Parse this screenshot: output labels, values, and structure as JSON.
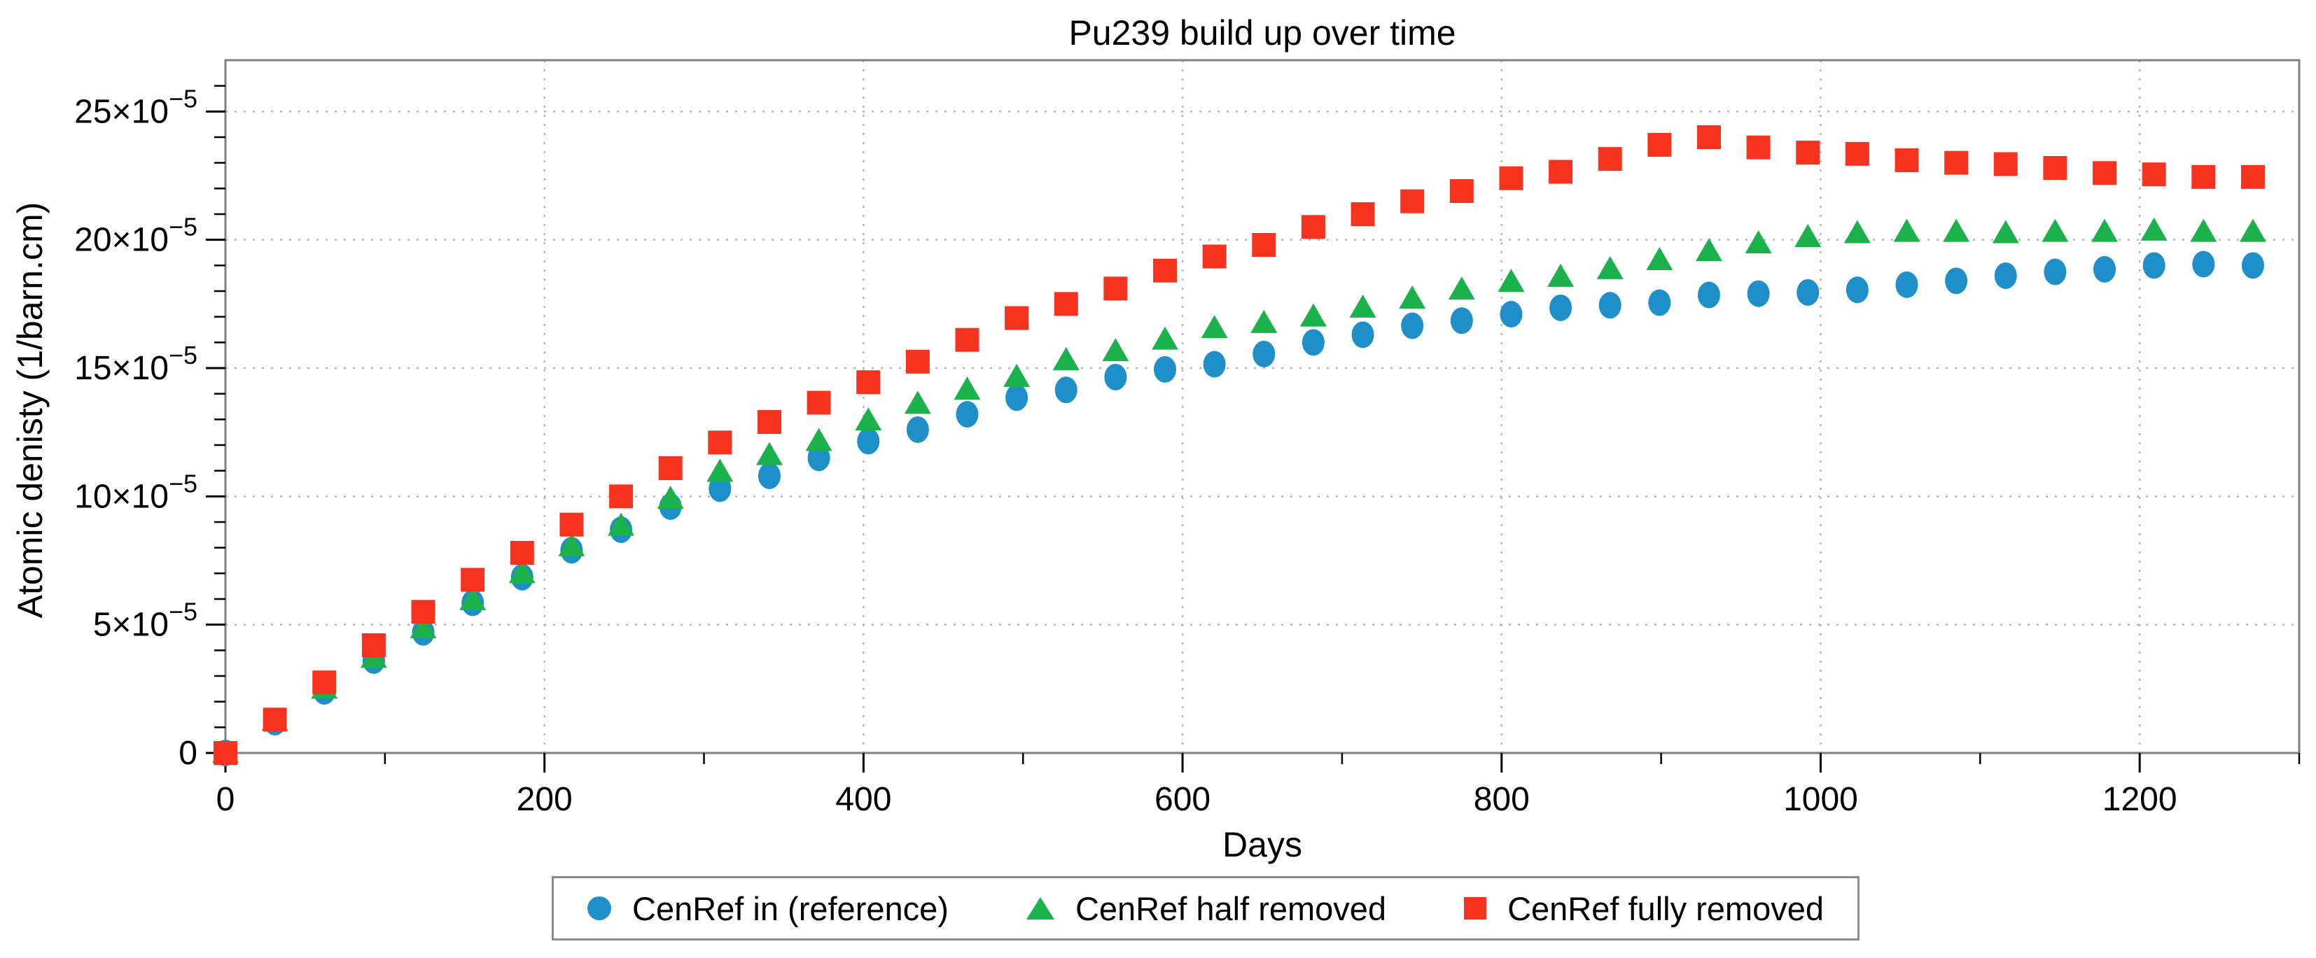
{
  "title": "Pu239 build up over time",
  "axes": {
    "x": {
      "label": "Days",
      "range": [
        0,
        1300
      ],
      "major_ticks": [
        0,
        200,
        400,
        600,
        800,
        1000,
        1200
      ],
      "major_tick_labels": [
        "0",
        "200",
        "400",
        "600",
        "800",
        "1000",
        "1200"
      ],
      "minor_ticks": [
        100,
        300,
        500,
        700,
        900,
        1100,
        1300
      ],
      "grid": "dotted at major ticks"
    },
    "y": {
      "label": "Atomic denisty (1/barn.cm)",
      "range_in_1e-5": [
        0,
        27
      ],
      "major_ticks_in_1e-5": [
        0,
        5,
        10,
        15,
        20,
        25
      ],
      "major_tick_labels": [
        "0",
        "5×10⁻⁵",
        "10×10⁻⁵",
        "15×10⁻⁵",
        "20×10⁻⁵",
        "25×10⁻⁵"
      ],
      "minor_ticks_in_1e-5": [
        1,
        2,
        3,
        4,
        6,
        7,
        8,
        9,
        11,
        12,
        13,
        14,
        16,
        17,
        18,
        19,
        21,
        22,
        23,
        24,
        26
      ],
      "grid": "dotted at major ticks"
    }
  },
  "colors": {
    "reference_blue": "#1e8fc8",
    "half_removed_green": "#1cb24b",
    "fully_removed_red": "#f5331f",
    "frame_gray": "#808080",
    "grid_gray": "#b4b4b4",
    "tick_black": "#000000",
    "legend_border_gray": "#8c8c8c"
  },
  "legend": {
    "position": "below x axis, centered",
    "items": [
      {
        "label": "CenRef in (reference)",
        "marker": "circle",
        "color": "#1e8fc8"
      },
      {
        "label": "CenRef half removed",
        "marker": "triangle",
        "color": "#1cb24b"
      },
      {
        "label": "CenRef fully removed",
        "marker": "square",
        "color": "#f5331f"
      }
    ]
  },
  "chart_data": {
    "type": "scatter",
    "title": "Pu239 build up over time",
    "xlabel": "Days",
    "ylabel": "Atomic denisty (1/barn.cm)",
    "xlim": [
      0,
      1300
    ],
    "ylim": [
      0,
      0.00027
    ],
    "y_unit_multiplier": 1e-05,
    "legend_position": "bottom-center",
    "grid": true,
    "x": [
      0,
      31,
      62,
      93,
      124,
      155,
      186,
      217,
      248,
      279,
      310,
      341,
      372,
      403,
      434,
      465,
      496,
      527,
      558,
      589,
      620,
      651,
      682,
      713,
      744,
      775,
      806,
      837,
      868,
      899,
      930,
      961,
      992,
      1023,
      1054,
      1085,
      1116,
      1147,
      1178,
      1209,
      1240,
      1271
    ],
    "series": [
      {
        "name": "CenRef in (reference)",
        "marker": "circle",
        "color": "#1e8fc8",
        "values_in_1e-5": [
          0,
          1.2,
          2.4,
          3.6,
          4.7,
          5.85,
          6.85,
          7.9,
          8.7,
          9.6,
          10.3,
          10.8,
          11.5,
          12.15,
          12.6,
          13.2,
          13.85,
          14.15,
          14.65,
          14.95,
          15.15,
          15.55,
          16.0,
          16.3,
          16.65,
          16.85,
          17.1,
          17.35,
          17.45,
          17.55,
          17.85,
          17.9,
          17.95,
          18.05,
          18.25,
          18.4,
          18.6,
          18.75,
          18.85,
          19.0,
          19.05,
          19.0
        ]
      },
      {
        "name": "CenRef half removed",
        "marker": "triangle",
        "color": "#1cb24b",
        "values_in_1e-5": [
          0,
          1.25,
          2.5,
          3.7,
          4.85,
          5.95,
          7.0,
          8.05,
          8.85,
          9.9,
          10.95,
          11.6,
          12.15,
          12.95,
          13.6,
          14.15,
          14.65,
          15.3,
          15.65,
          16.1,
          16.55,
          16.75,
          17.0,
          17.35,
          17.7,
          18.05,
          18.35,
          18.55,
          18.85,
          19.2,
          19.55,
          19.85,
          20.1,
          20.25,
          20.3,
          20.3,
          20.25,
          20.3,
          20.3,
          20.35,
          20.3,
          20.3
        ]
      },
      {
        "name": "CenRef fully removed",
        "marker": "square",
        "color": "#f5331f",
        "values_in_1e-5": [
          0,
          1.3,
          2.75,
          4.2,
          5.5,
          6.75,
          7.8,
          8.9,
          10.0,
          11.1,
          12.1,
          12.9,
          13.65,
          14.45,
          15.25,
          16.1,
          16.95,
          17.5,
          18.1,
          18.8,
          19.35,
          19.8,
          20.5,
          21.0,
          21.5,
          21.9,
          22.4,
          22.65,
          23.15,
          23.7,
          24.0,
          23.6,
          23.4,
          23.35,
          23.1,
          23.0,
          22.95,
          22.8,
          22.6,
          22.55,
          22.45,
          22.45
        ]
      }
    ]
  }
}
